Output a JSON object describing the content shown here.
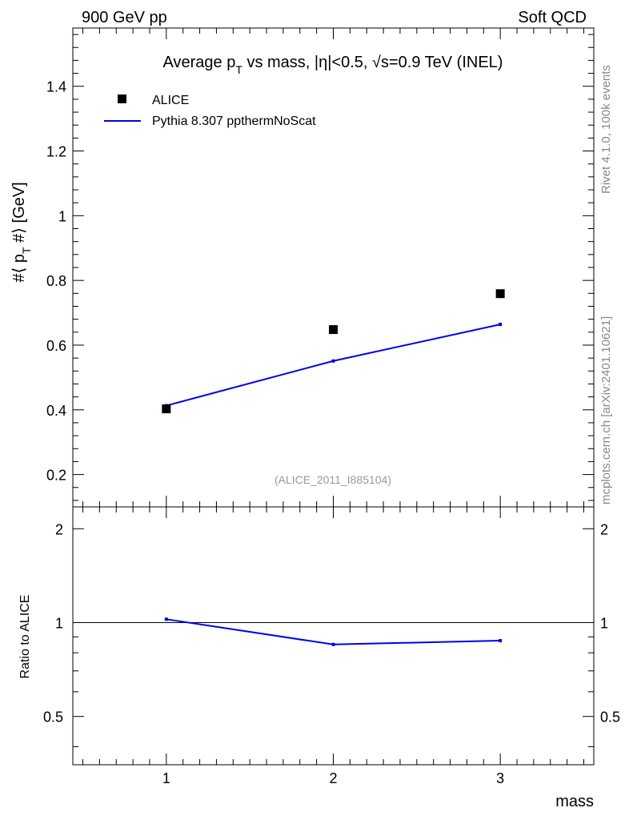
{
  "header": {
    "left": "900 GeV pp",
    "right": "Soft QCD"
  },
  "side": {
    "rivet": "Rivet 4.1.0,  100k events",
    "mcplots": "mcplots.cern.ch [arXiv:2401.10621]"
  },
  "colors": {
    "data": "#000000",
    "mc": "#0000ee",
    "watermark": "#999999",
    "side_text": "#888888"
  },
  "chart_data": [
    {
      "type": "scatter",
      "title": "Average p_T vs mass, |η|<0.5, √s=0.9 TeV (INEL)",
      "title_parts": {
        "a": "Average p",
        "a_sub": "T",
        "b": " vs mass, |η|<0.5, √s=0.9 TeV (INEL)"
      },
      "ylabel": "#⟨ p_T #⟩ [GeV]",
      "ylabel_parts": {
        "a": "#⟨ p",
        "sub": "T",
        "b": " #⟩ [GeV]"
      },
      "xlabel": "mass",
      "watermark": "(ALICE_2011_I885104)",
      "xlim": [
        0.44,
        3.56
      ],
      "ylim": [
        0.1,
        1.58
      ],
      "x_ticks": [
        1,
        2,
        3
      ],
      "x_tick_labels": [
        "1",
        "2",
        "3"
      ],
      "y_ticks": [
        0.2,
        0.4,
        0.6,
        0.8,
        1.0,
        1.2,
        1.4
      ],
      "y_tick_labels": [
        "0.2",
        "0.4",
        "0.6",
        "0.8",
        "1",
        "1.2",
        "1.4"
      ],
      "legend_position": "top-left",
      "series": [
        {
          "name": "ALICE",
          "style": "markers",
          "x": [
            1,
            2,
            3
          ],
          "y": [
            0.403,
            0.648,
            0.759
          ]
        },
        {
          "name": "Pythia 8.307 ppthermNoScat",
          "style": "line",
          "x": [
            1,
            2,
            3
          ],
          "y": [
            0.413,
            0.551,
            0.664
          ]
        }
      ]
    },
    {
      "type": "line",
      "ylabel": "Ratio to ALICE",
      "xlim": [
        0.44,
        3.56
      ],
      "ylim": [
        0.35,
        2.35
      ],
      "y_scale": "log",
      "reference_line": 1.0,
      "y_tick_labels": [
        "0.5",
        "1",
        "2"
      ],
      "y_ticks": [
        0.5,
        1,
        2
      ],
      "series": [
        {
          "name": "Pythia 8.307 ppthermNoScat / ALICE",
          "x": [
            1,
            2,
            3
          ],
          "y": [
            1.025,
            0.851,
            0.875
          ]
        }
      ]
    }
  ]
}
